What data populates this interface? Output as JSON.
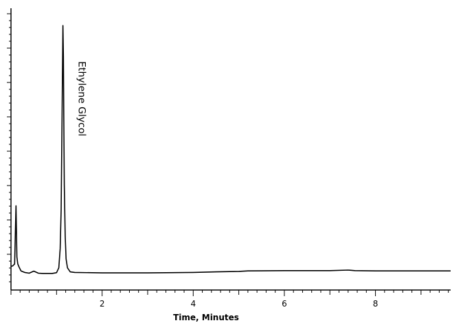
{
  "chart_data": {
    "type": "line",
    "title": "",
    "xlabel": "Time, Minutes",
    "ylabel": "",
    "xlim": [
      0,
      9.65
    ],
    "ylim": [
      0,
      100
    ],
    "grid": false,
    "x_ticks": [
      2,
      4,
      6,
      8
    ],
    "series": [
      {
        "name": "",
        "x": [
          0.0,
          0.04,
          0.08,
          0.11,
          0.13,
          0.15,
          0.18,
          0.22,
          0.3,
          0.4,
          0.5,
          0.55,
          0.6,
          0.7,
          0.8,
          0.9,
          1.0,
          1.05,
          1.08,
          1.1,
          1.12,
          1.14,
          1.15,
          1.16,
          1.17,
          1.19,
          1.21,
          1.24,
          1.3,
          1.4,
          2.0,
          3.0,
          4.0,
          4.5,
          5.0,
          5.2,
          6.0,
          7.0,
          7.4,
          7.55,
          8.0,
          9.0,
          9.65
        ],
        "y": [
          3,
          3.3,
          4,
          26.7,
          6.7,
          4,
          2.7,
          1.3,
          0.7,
          0.4,
          1.2,
          0.8,
          0.4,
          0.3,
          0.3,
          0.3,
          0.6,
          2.5,
          10,
          25,
          60,
          97,
          85,
          60,
          35,
          15,
          6,
          2.5,
          0.9,
          0.7,
          0.5,
          0.5,
          0.7,
          0.9,
          1.1,
          1.3,
          1.4,
          1.4,
          1.6,
          1.4,
          1.3,
          1.3,
          1.3
        ]
      }
    ],
    "annotations": [
      {
        "text": "Ethylene Glycol",
        "x": 1.15,
        "y": 97
      }
    ]
  }
}
